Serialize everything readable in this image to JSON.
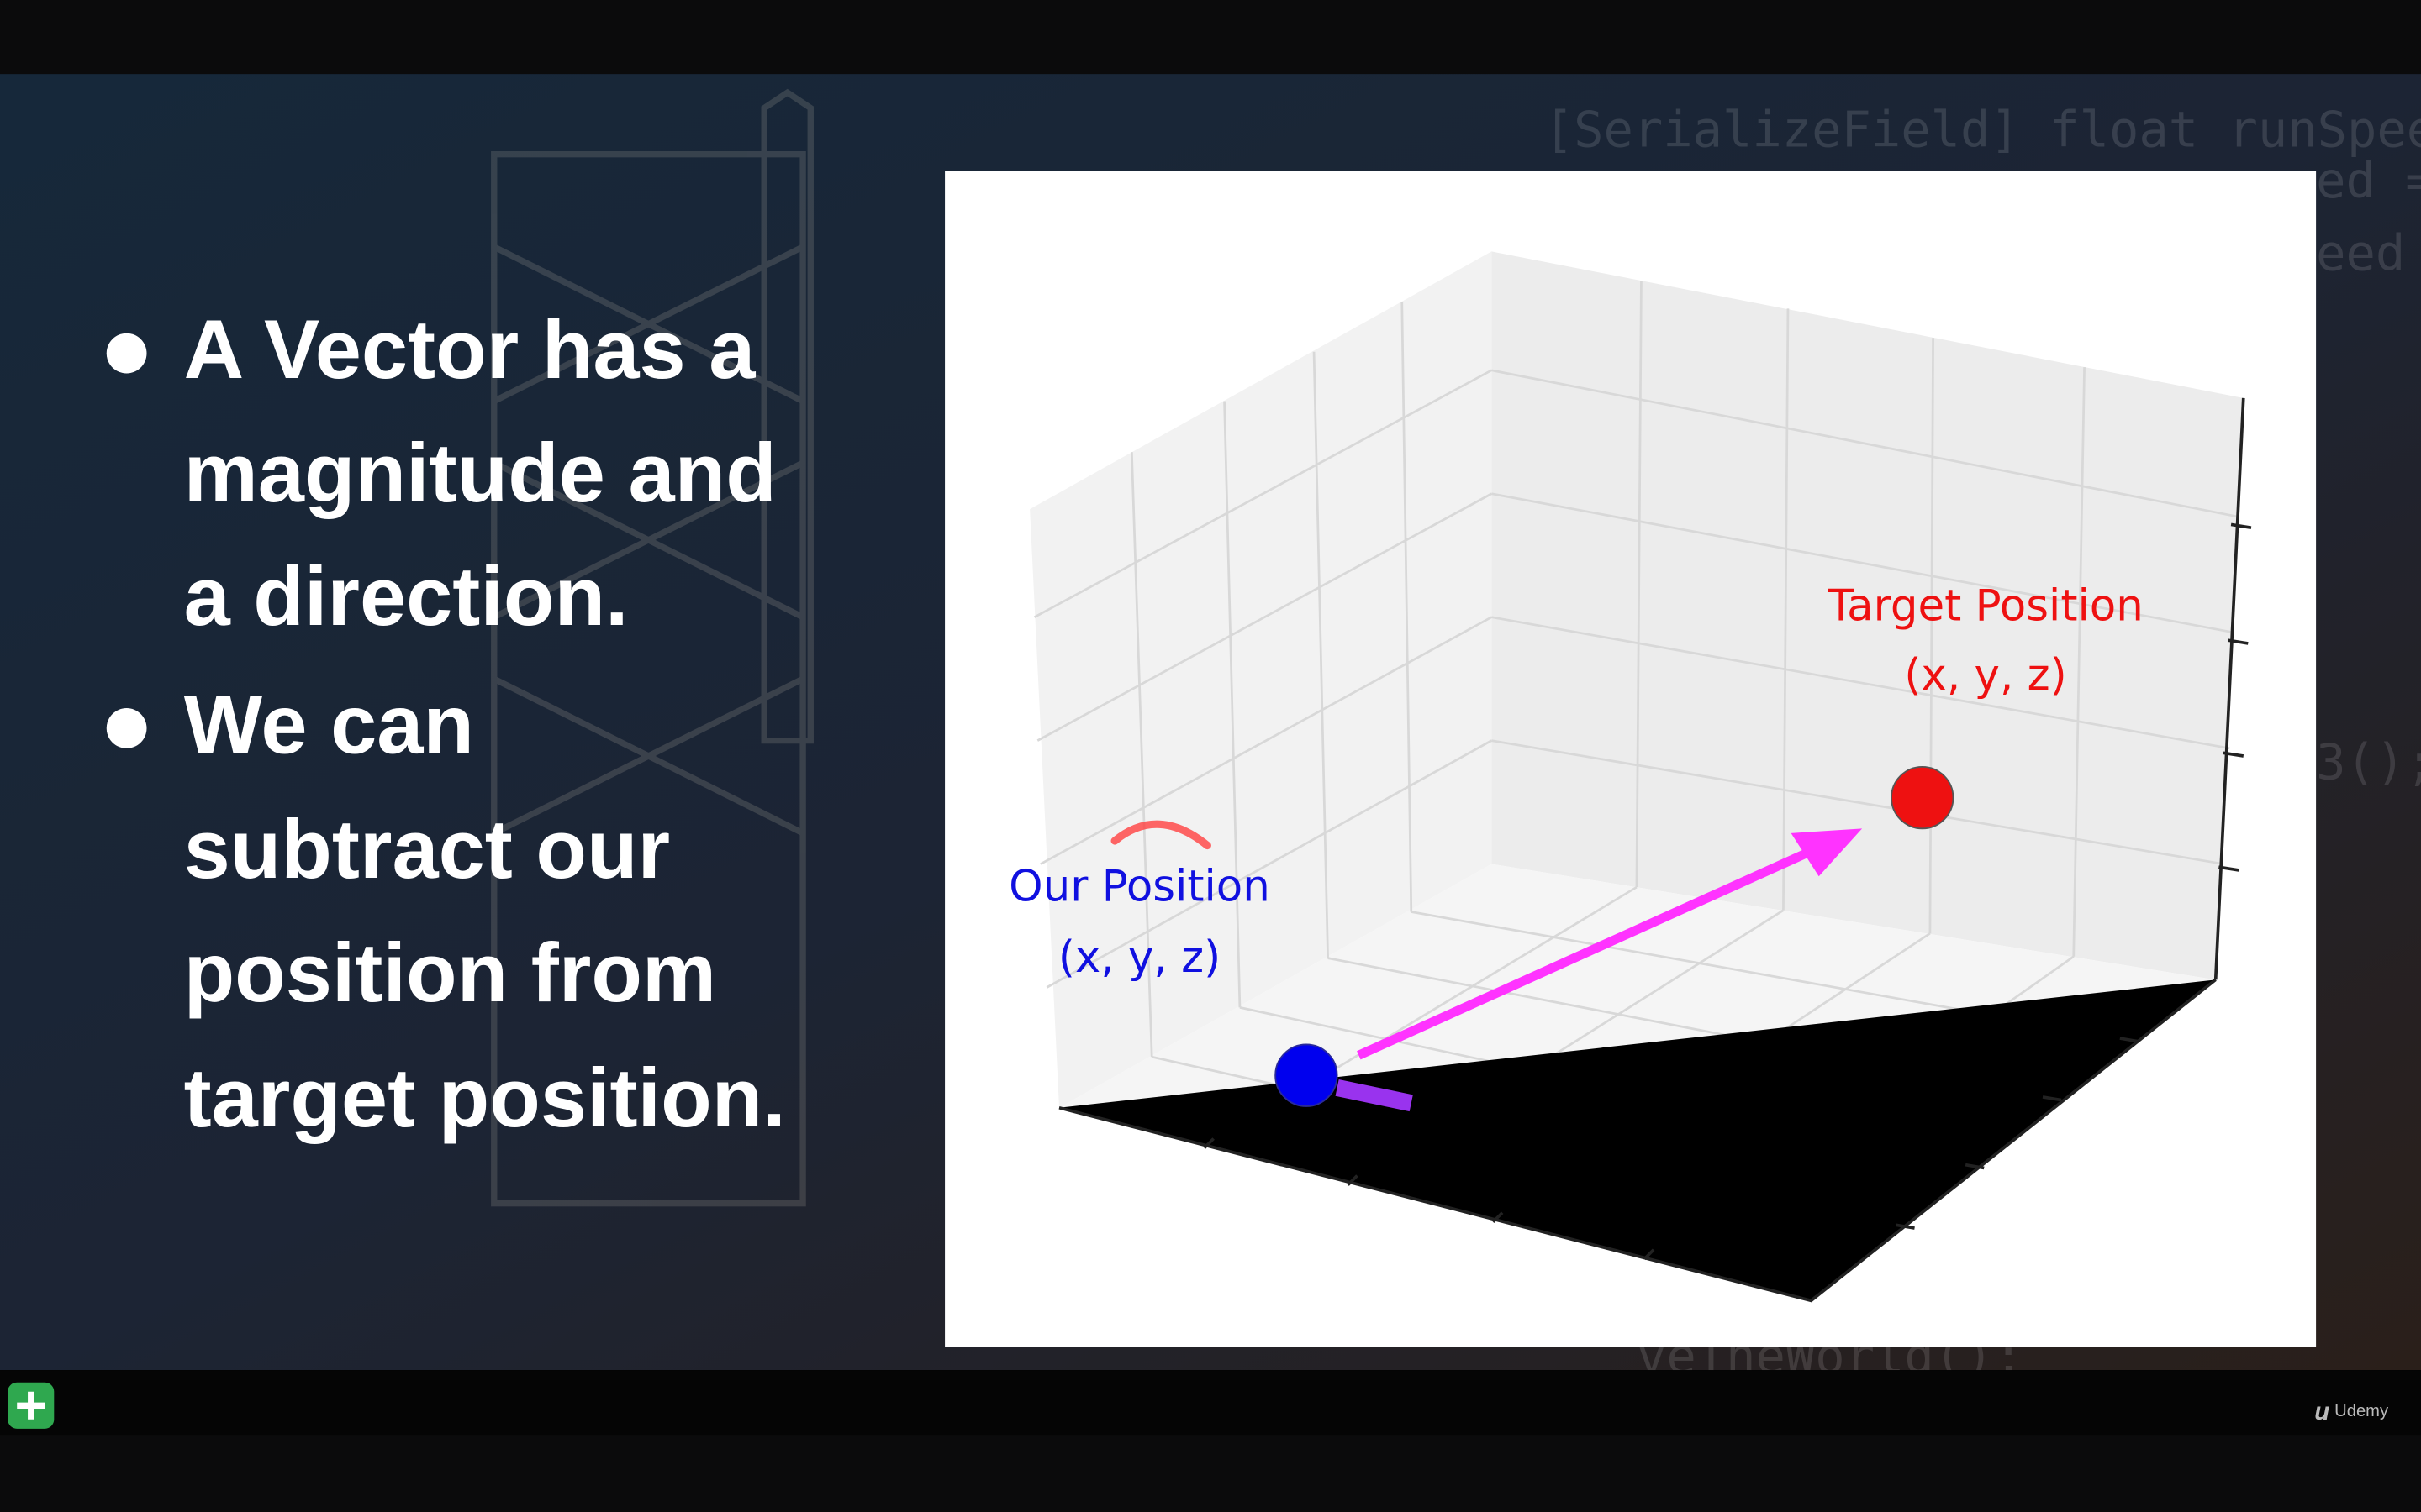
{
  "slide": {
    "bullets": [
      [
        "A Vector has a",
        "magnitude and",
        "a direction."
      ],
      [
        "We can",
        "subtract our",
        "position from",
        "target position."
      ]
    ],
    "figure": {
      "our_label": "Our Position",
      "our_coords": "(x, y, z)",
      "target_label": "Target Position",
      "target_coords": "(x, y, z)"
    },
    "background_code": [
      "[SerializeField] float runSpeed =",
      "ed =",
      "eed",
      "3();",
      "veTheWorld();"
    ]
  },
  "player": {
    "brand": "Udemy"
  }
}
